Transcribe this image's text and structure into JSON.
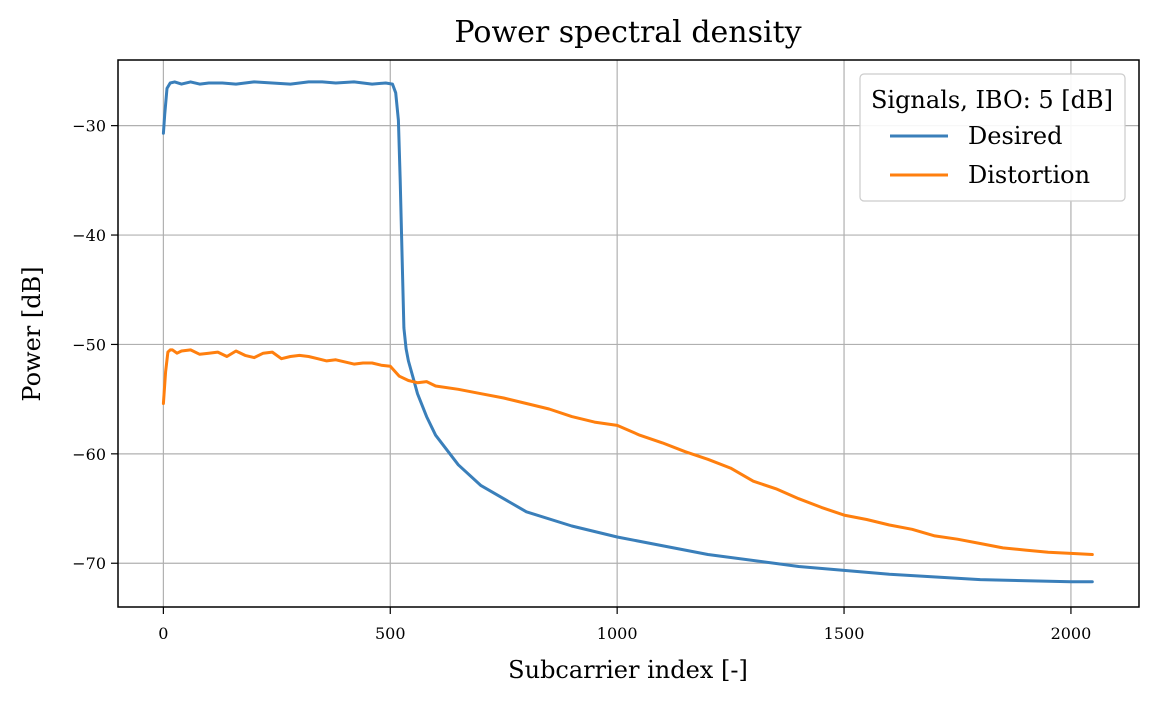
{
  "chart_data": {
    "type": "line",
    "title": "Power spectral density",
    "xlabel": "Subcarrier index [-]",
    "ylabel": "Power [dB]",
    "xlim": [
      -100,
      2150
    ],
    "ylim": [
      -74,
      -24
    ],
    "xticks": [
      0,
      500,
      1000,
      1500,
      2000
    ],
    "xtick_labels": [
      "0",
      "500",
      "1000",
      "1500",
      "2000"
    ],
    "yticks": [
      -70,
      -60,
      -50,
      -40,
      -30
    ],
    "ytick_labels": [
      "−70",
      "−60",
      "−50",
      "−40",
      "−30"
    ],
    "grid": true,
    "legend": {
      "title": "Signals, IBO: 5 [dB]",
      "placement": "top-right",
      "entries": [
        "Desired",
        "Distortion"
      ]
    },
    "series": [
      {
        "name": "Desired",
        "color": "#3a7fba",
        "x": [
          0,
          3,
          8,
          15,
          25,
          40,
          60,
          80,
          100,
          130,
          160,
          200,
          240,
          280,
          320,
          350,
          380,
          420,
          460,
          490,
          505,
          512,
          518,
          522,
          526,
          530,
          535,
          540,
          550,
          560,
          580,
          600,
          650,
          700,
          800,
          900,
          1000,
          1200,
          1400,
          1600,
          1800,
          2000,
          2047
        ],
        "y": [
          -30.7,
          -29.0,
          -26.6,
          -26.1,
          -26.0,
          -26.2,
          -26.0,
          -26.2,
          -26.1,
          -26.1,
          -26.2,
          -26.0,
          -26.1,
          -26.2,
          -26.0,
          -26.0,
          -26.1,
          -26.0,
          -26.2,
          -26.1,
          -26.2,
          -27.0,
          -29.5,
          -35.0,
          -42.0,
          -48.5,
          -50.4,
          -51.5,
          -53.0,
          -54.5,
          -56.6,
          -58.3,
          -61.0,
          -62.9,
          -65.3,
          -66.6,
          -67.6,
          -69.2,
          -70.3,
          -71.0,
          -71.5,
          -71.7,
          -71.7
        ]
      },
      {
        "name": "Distortion",
        "color": "#ff7f0e",
        "x": [
          0,
          5,
          10,
          15,
          20,
          30,
          40,
          60,
          80,
          100,
          120,
          140,
          160,
          180,
          200,
          220,
          240,
          260,
          280,
          300,
          320,
          340,
          360,
          380,
          400,
          420,
          440,
          460,
          480,
          500,
          520,
          540,
          560,
          580,
          600,
          650,
          700,
          750,
          800,
          850,
          900,
          950,
          1000,
          1050,
          1100,
          1150,
          1200,
          1250,
          1300,
          1350,
          1400,
          1450,
          1500,
          1550,
          1600,
          1650,
          1700,
          1750,
          1800,
          1850,
          1900,
          1950,
          2000,
          2047
        ],
        "y": [
          -55.4,
          -52.5,
          -50.7,
          -50.5,
          -50.5,
          -50.8,
          -50.6,
          -50.5,
          -50.9,
          -50.8,
          -50.7,
          -51.1,
          -50.6,
          -51.0,
          -51.2,
          -50.8,
          -50.7,
          -51.3,
          -51.1,
          -51.0,
          -51.1,
          -51.3,
          -51.5,
          -51.4,
          -51.6,
          -51.8,
          -51.7,
          -51.7,
          -51.9,
          -52.0,
          -52.9,
          -53.3,
          -53.5,
          -53.4,
          -53.8,
          -54.1,
          -54.5,
          -54.9,
          -55.4,
          -55.9,
          -56.6,
          -57.1,
          -57.4,
          -58.3,
          -59.0,
          -59.8,
          -60.5,
          -61.3,
          -62.5,
          -63.2,
          -64.1,
          -64.9,
          -65.6,
          -66.0,
          -66.5,
          -66.9,
          -67.5,
          -67.8,
          -68.2,
          -68.6,
          -68.8,
          -69.0,
          -69.1,
          -69.2
        ]
      }
    ]
  }
}
